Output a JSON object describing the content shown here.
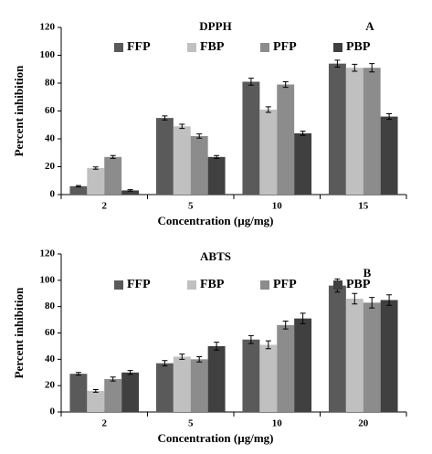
{
  "chart_data": [
    {
      "type": "bar",
      "title": "DPPH",
      "annotation": "A",
      "x_label": "Concentration (µg/mg)",
      "y_label": "Percent inhibition",
      "categories": [
        "2",
        "5",
        "10",
        "15"
      ],
      "series": [
        {
          "name": "FFP",
          "color": "#5a5a5a",
          "values": [
            6,
            55,
            81,
            94
          ],
          "errors": [
            0.5,
            1.5,
            2.5,
            2.5
          ]
        },
        {
          "name": "FBP",
          "color": "#c0c0c0",
          "values": [
            19,
            49,
            61,
            91
          ],
          "errors": [
            0.8,
            1.5,
            2,
            2.5
          ]
        },
        {
          "name": "PFP",
          "color": "#8c8c8c",
          "values": [
            27,
            42,
            79,
            91
          ],
          "errors": [
            1,
            1.5,
            2,
            3
          ]
        },
        {
          "name": "PBP",
          "color": "#404040",
          "values": [
            3,
            27,
            44,
            56
          ],
          "errors": [
            0.5,
            1,
            1.5,
            2
          ]
        }
      ],
      "ylim": [
        0,
        120
      ],
      "yticks": [
        0,
        20,
        40,
        60,
        80,
        100,
        120
      ],
      "grid": false,
      "legend": "top"
    },
    {
      "type": "bar",
      "title": "ABTS",
      "annotation": "B",
      "x_label": "Concentration (µg/mg)",
      "y_label": "Percent inhibition",
      "categories": [
        "2",
        "5",
        "10",
        "20"
      ],
      "series": [
        {
          "name": "FFP",
          "color": "#5a5a5a",
          "values": [
            29,
            37,
            55,
            96
          ],
          "errors": [
            1,
            2,
            3,
            5
          ]
        },
        {
          "name": "FBP",
          "color": "#c0c0c0",
          "values": [
            16,
            42,
            51,
            86
          ],
          "errors": [
            1,
            2,
            3,
            4
          ]
        },
        {
          "name": "PFP",
          "color": "#8c8c8c",
          "values": [
            25,
            40,
            66,
            83
          ],
          "errors": [
            1.5,
            2,
            3,
            4
          ]
        },
        {
          "name": "PBP",
          "color": "#404040",
          "values": [
            30,
            50,
            71,
            85
          ],
          "errors": [
            1.5,
            3,
            4,
            4
          ]
        }
      ],
      "ylim": [
        0,
        120
      ],
      "yticks": [
        0,
        20,
        40,
        60,
        80,
        100,
        120
      ],
      "grid": false,
      "legend": "top"
    }
  ]
}
